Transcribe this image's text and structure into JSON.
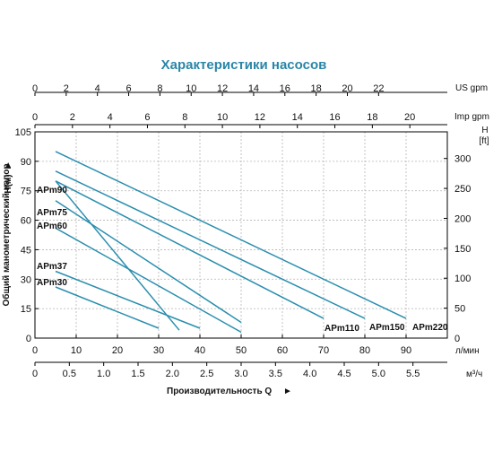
{
  "chart_data": {
    "type": "line",
    "title": "Характеристики насосов",
    "colors": {
      "curve": "#2a8eae",
      "title": "#2a86a8",
      "grid": "#b5b5b5"
    },
    "axes": {
      "x_primary": {
        "unit": "л/мин",
        "range": [
          0,
          100
        ],
        "ticks": [
          "0",
          "10",
          "20",
          "30",
          "40",
          "50",
          "60",
          "70",
          "80",
          "90"
        ],
        "title": "Производительность Q",
        "title_arrow": "►"
      },
      "x_m3h": {
        "unit": "м³/ч",
        "range": [
          0,
          6
        ],
        "ticks": [
          "0",
          "0.5",
          "1.0",
          "1.5",
          "2.0",
          "2.5",
          "3.0",
          "3.5",
          "4.0",
          "4.5",
          "5.0",
          "5.5"
        ]
      },
      "x_us_gpm": {
        "unit": "US gpm",
        "range": [
          0,
          26.4
        ],
        "ticks": [
          "0",
          "2",
          "4",
          "6",
          "8",
          "10",
          "12",
          "14",
          "16",
          "18",
          "20",
          "22"
        ]
      },
      "x_imp_gpm": {
        "unit": "Imp gpm",
        "range": [
          0,
          22
        ],
        "ticks": [
          "0",
          "2",
          "4",
          "6",
          "8",
          "10",
          "12",
          "14",
          "16",
          "18",
          "20"
        ]
      },
      "y_left": {
        "unit": "H(м)",
        "unit_arrow": "►",
        "title": "Общий манометрический напор",
        "range": [
          0,
          105
        ],
        "ticks": [
          "0",
          "15",
          "30",
          "45",
          "60",
          "75",
          "90",
          "105"
        ]
      },
      "y_right": {
        "unit_line1": "H",
        "unit_line2": "[ft]",
        "range": [
          0,
          344.5
        ],
        "ticks": [
          "0",
          "50",
          "100",
          "150",
          "200",
          "250",
          "300"
        ]
      }
    },
    "grid": true,
    "series": [
      {
        "name": "APm30",
        "x": [
          5,
          30
        ],
        "y": [
          26,
          5
        ]
      },
      {
        "name": "APm37",
        "x": [
          5,
          40
        ],
        "y": [
          34,
          5
        ]
      },
      {
        "name": "APm60",
        "x": [
          5,
          50
        ],
        "y": [
          56,
          3
        ]
      },
      {
        "name": "APm75",
        "x": [
          5,
          50
        ],
        "y": [
          70,
          8
        ]
      },
      {
        "name": "APm90",
        "x": [
          5,
          35
        ],
        "y": [
          80,
          4
        ]
      },
      {
        "name": "APm110",
        "x": [
          5,
          70
        ],
        "y": [
          80,
          10
        ]
      },
      {
        "name": "APm150",
        "x": [
          5,
          80
        ],
        "y": [
          85,
          10
        ]
      },
      {
        "name": "APm220",
        "x": [
          5,
          90
        ],
        "y": [
          95,
          10
        ]
      }
    ]
  }
}
